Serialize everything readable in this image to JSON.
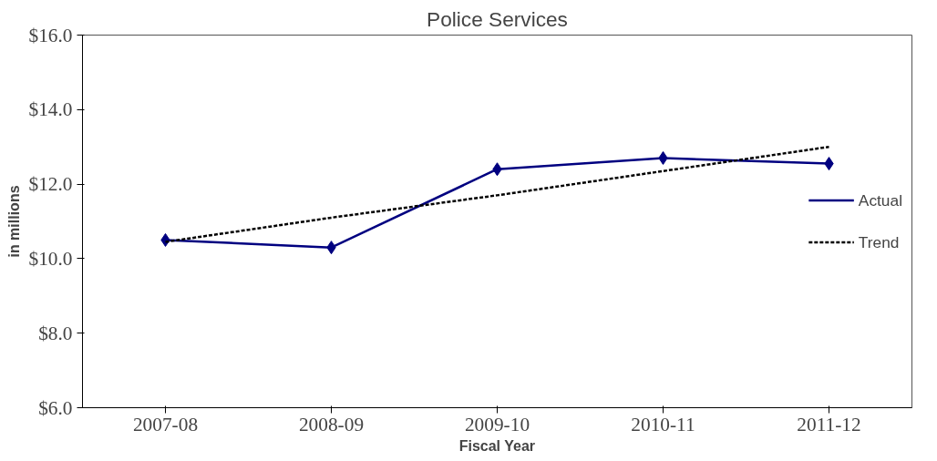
{
  "chart_data": {
    "type": "line",
    "title": "Police Services",
    "xlabel": "Fiscal Year",
    "ylabel": "in millions",
    "categories": [
      "2007-08",
      "2008-09",
      "2009-10",
      "2010-11",
      "2011-12"
    ],
    "series": [
      {
        "name": "Actual",
        "color": "#000080",
        "values": [
          10.5,
          10.3,
          12.4,
          12.7,
          12.55
        ],
        "marker": "diamond",
        "line_style": "solid"
      },
      {
        "name": "Trend",
        "color": "#000000",
        "values": [
          10.45,
          11.1,
          11.7,
          12.35,
          13.0
        ],
        "marker": "none",
        "line_style": "dashed"
      }
    ],
    "ylim": [
      6,
      16
    ],
    "yticks": [
      {
        "value": 6,
        "label": "$6.0"
      },
      {
        "value": 8,
        "label": "$8.0"
      },
      {
        "value": 10,
        "label": "$10.0"
      },
      {
        "value": 12,
        "label": "$12.0"
      },
      {
        "value": 14,
        "label": "$14.0"
      },
      {
        "value": 16,
        "label": "$16.0"
      }
    ],
    "grid": false,
    "legend": "right"
  }
}
